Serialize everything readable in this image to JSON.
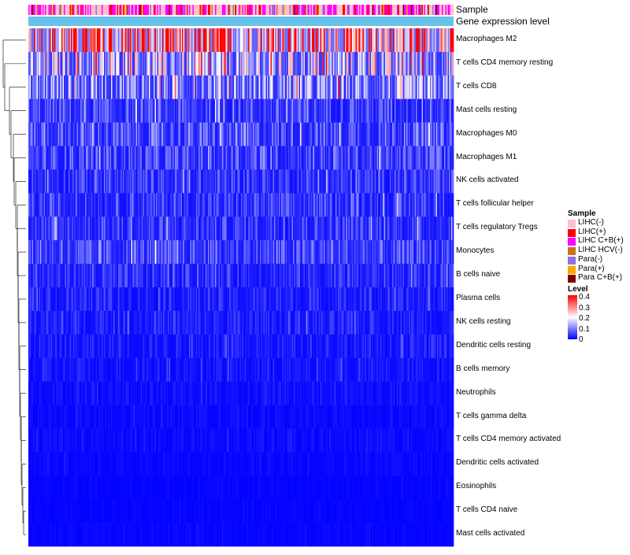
{
  "chart_data": {
    "type": "heatmap",
    "title": "",
    "value_range": [
      0,
      0.4
    ],
    "color_scale": {
      "title": "Level",
      "ticks": [
        "0.4",
        "0.3",
        "0.2",
        "0.1",
        "0"
      ],
      "low_color": "#0000ff",
      "mid_color": "#ffffff",
      "high_color": "#ff0000"
    },
    "column_annotations": [
      {
        "name": "Sample"
      },
      {
        "name": "Gene expression level",
        "color": "#66c2e8"
      }
    ],
    "sample_legend": {
      "title": "Sample",
      "entries": [
        {
          "label": "LIHC(-)",
          "color": "#ffc0cb"
        },
        {
          "label": "LIHC(+)",
          "color": "#ff0000"
        },
        {
          "label": "LIHC C+B(+)",
          "color": "#ff00ff"
        },
        {
          "label": "LIHC HCV(-)",
          "color": "#cd6f23"
        },
        {
          "label": "Para(-)",
          "color": "#9370db"
        },
        {
          "label": "Para(+)",
          "color": "#ffa500"
        },
        {
          "label": "Para C+B(+)",
          "color": "#800000"
        }
      ]
    },
    "rows": [
      {
        "label": "Macrophages M2",
        "mean": 0.3
      },
      {
        "label": "T cells CD4 memory resting",
        "mean": 0.15
      },
      {
        "label": "T cells CD8",
        "mean": 0.12
      },
      {
        "label": "Mast cells resting",
        "mean": 0.06
      },
      {
        "label": "Macrophages M0",
        "mean": 0.07
      },
      {
        "label": "Macrophages M1",
        "mean": 0.06
      },
      {
        "label": "NK cells activated",
        "mean": 0.05
      },
      {
        "label": "T cells follicular helper",
        "mean": 0.05
      },
      {
        "label": "T cells regulatory  Tregs",
        "mean": 0.05
      },
      {
        "label": "Monocytes",
        "mean": 0.06
      },
      {
        "label": "B cells naive",
        "mean": 0.04
      },
      {
        "label": "Plasma cells",
        "mean": 0.03
      },
      {
        "label": "NK cells resting",
        "mean": 0.03
      },
      {
        "label": "Dendritic cells resting",
        "mean": 0.025
      },
      {
        "label": "B cells memory",
        "mean": 0.02
      },
      {
        "label": "Neutrophils",
        "mean": 0.015
      },
      {
        "label": "T cells gamma delta",
        "mean": 0.01
      },
      {
        "label": "T cells CD4 memory activated",
        "mean": 0.01
      },
      {
        "label": "Dendritic cells activated",
        "mean": 0.008
      },
      {
        "label": "Eosinophils",
        "mean": 0.005
      },
      {
        "label": "T cells CD4 naive",
        "mean": 0.005
      },
      {
        "label": "Mast cells activated",
        "mean": 0.006
      }
    ]
  }
}
